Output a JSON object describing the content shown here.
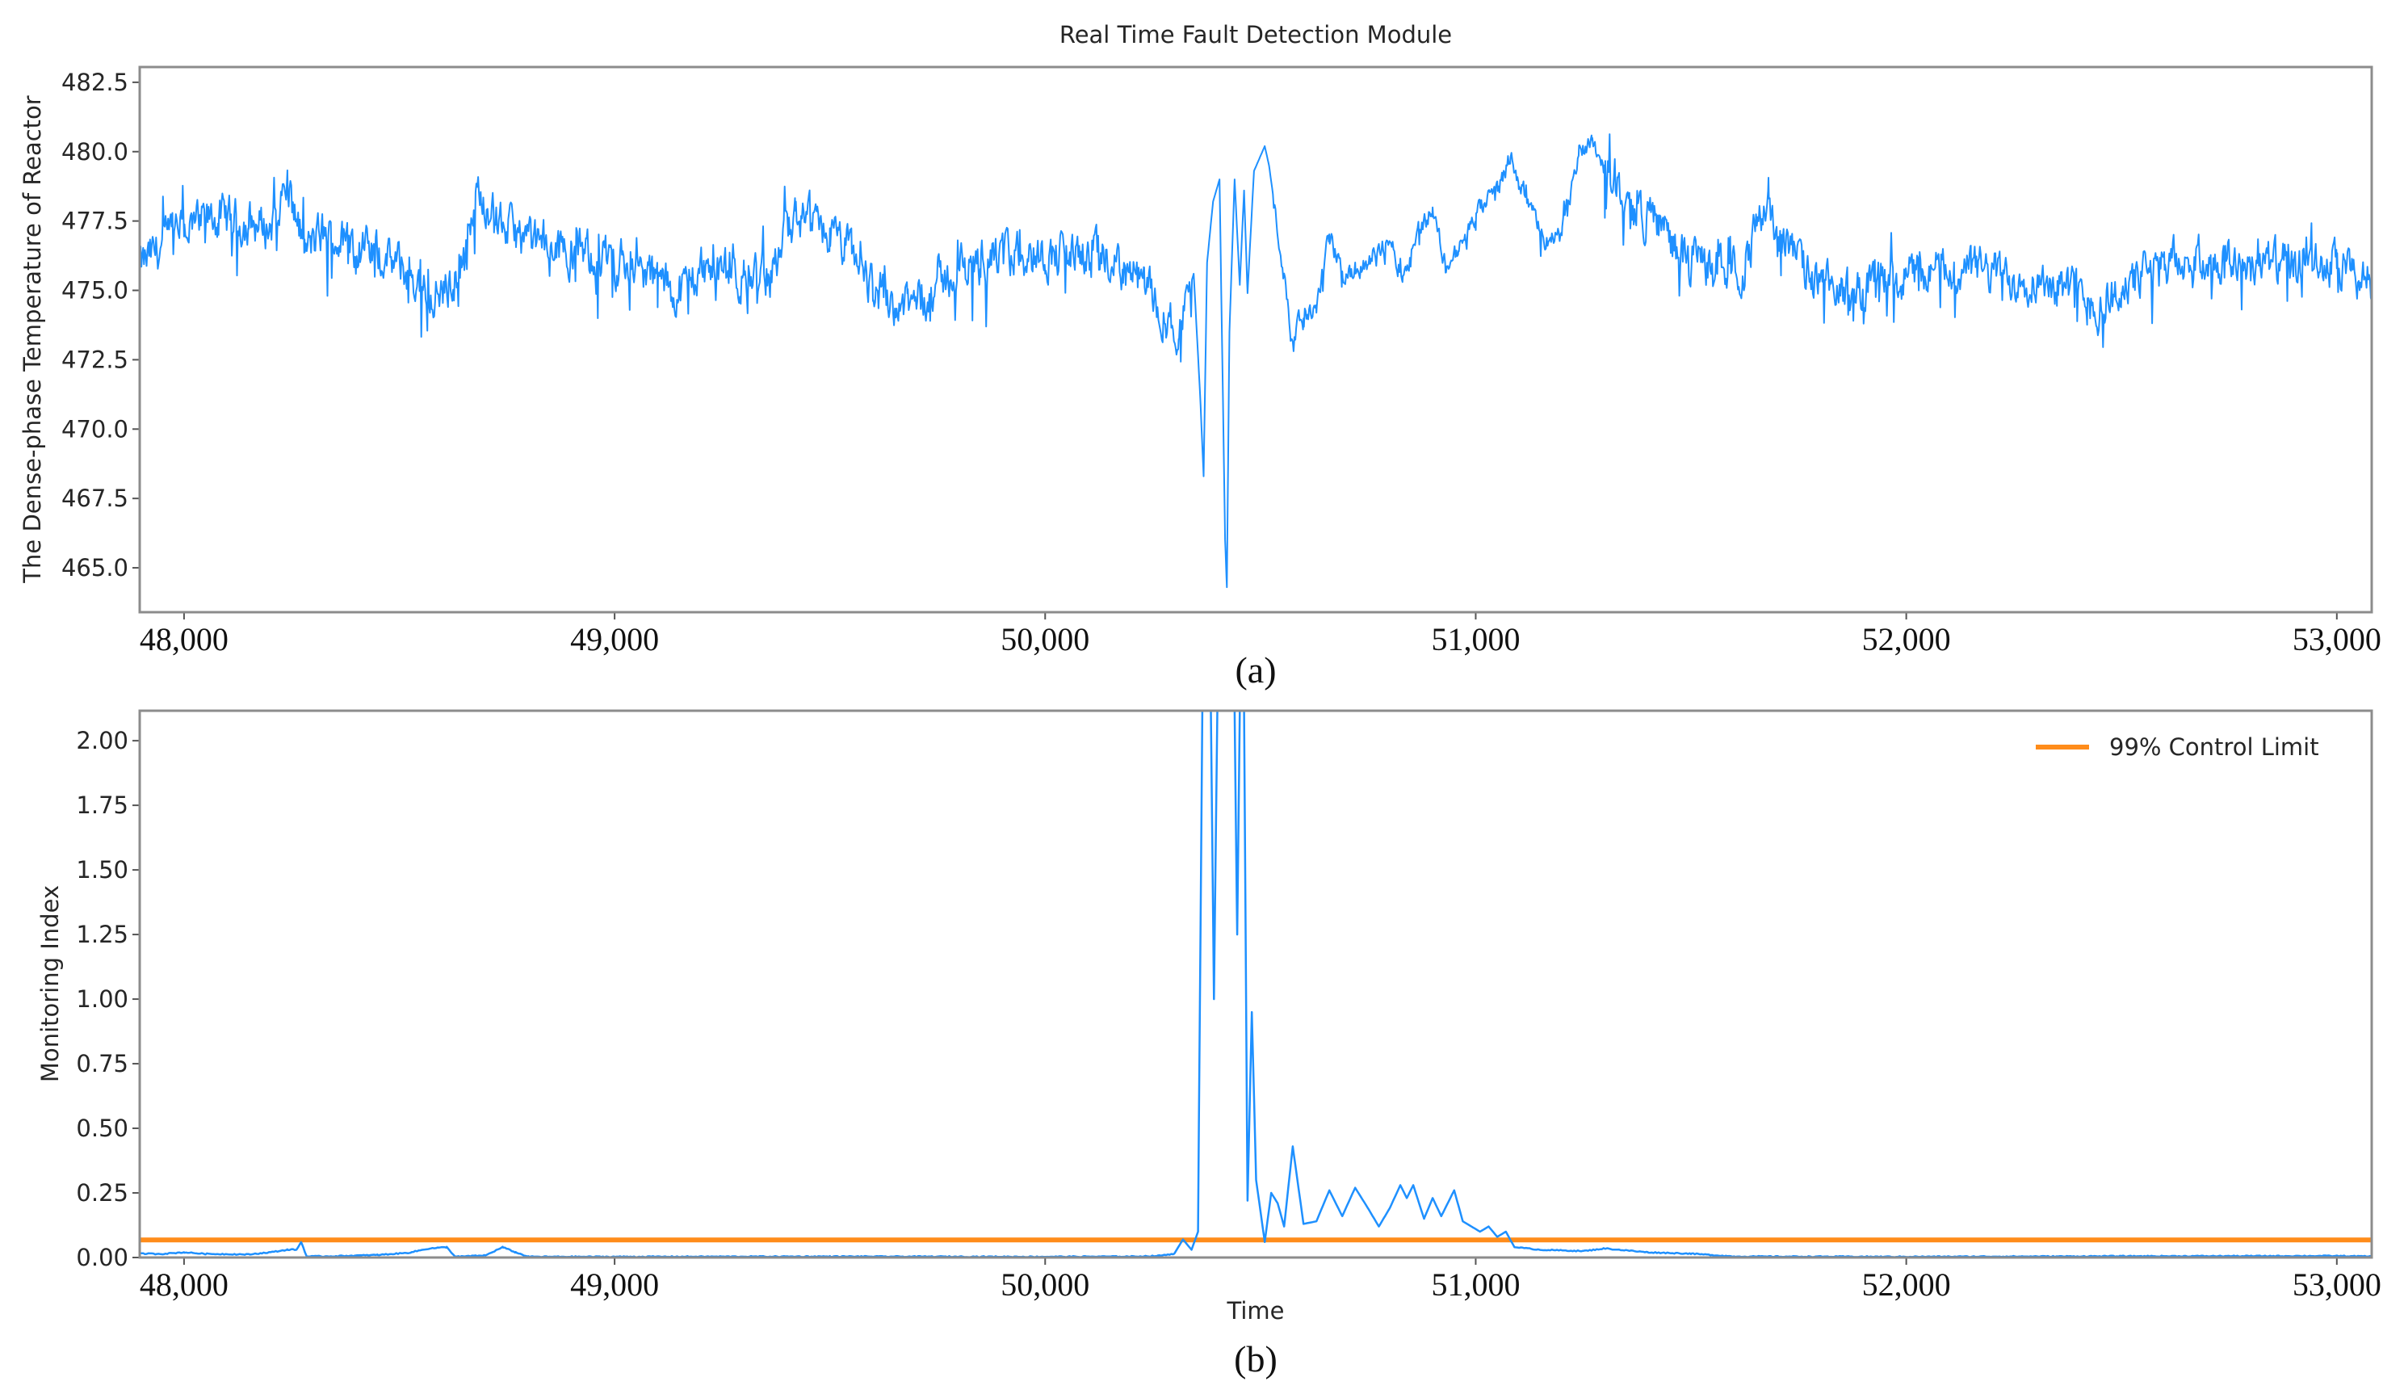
{
  "figure": {
    "title": "Real Time Fault Detection Module",
    "panel_a_label": "(a)",
    "panel_b_label": "(b)"
  },
  "colors": {
    "series": "#1e90ff",
    "control_limit": "#ff8c1a",
    "frame": "#8c8c8c",
    "text": "#262626"
  },
  "chart_data": [
    {
      "id": "temperature",
      "type": "line",
      "title": "Real Time Fault Detection Module",
      "xlabel": "",
      "ylabel": "The Dense-phase Temperature of Reactor",
      "panel_label": "(a)",
      "xlim": [
        47897,
        53081
      ],
      "ylim": [
        463.4,
        483.05
      ],
      "grid": false,
      "xticks": [
        48000,
        49000,
        50000,
        51000,
        52000,
        53000
      ],
      "xtick_labels": [
        "48,000",
        "49,000",
        "50,000",
        "51,000",
        "52,000",
        "53,000"
      ],
      "yticks": [
        465.0,
        467.5,
        470.0,
        472.5,
        475.0,
        477.5,
        480.0,
        482.5
      ],
      "ytick_labels": [
        "465.0",
        "467.5",
        "470.0",
        "472.5",
        "475.0",
        "477.5",
        "480.0",
        "482.5"
      ],
      "series": [
        {
          "name": "Dense-phase temperature",
          "color": "#1e90ff",
          "noise_amplitude": 0.9,
          "trend_points": [
            [
              47897,
              475.8
            ],
            [
              47950,
              476.6
            ],
            [
              48000,
              477.3
            ],
            [
              48080,
              477.6
            ],
            [
              48150,
              477.4
            ],
            [
              48200,
              477.3
            ],
            [
              48240,
              478.8
            ],
            [
              48280,
              476.4
            ],
            [
              48320,
              477.0
            ],
            [
              48400,
              476.6
            ],
            [
              48500,
              475.9
            ],
            [
              48560,
              475.0
            ],
            [
              48600,
              474.8
            ],
            [
              48650,
              476.0
            ],
            [
              48690,
              478.9
            ],
            [
              48720,
              477.6
            ],
            [
              48800,
              476.7
            ],
            [
              48900,
              476.4
            ],
            [
              49000,
              476.1
            ],
            [
              49100,
              475.4
            ],
            [
              49150,
              474.9
            ],
            [
              49200,
              475.8
            ],
            [
              49300,
              475.4
            ],
            [
              49360,
              475.6
            ],
            [
              49420,
              477.6
            ],
            [
              49500,
              477.0
            ],
            [
              49550,
              476.4
            ],
            [
              49600,
              475.1
            ],
            [
              49680,
              474.4
            ],
            [
              49750,
              475.2
            ],
            [
              49850,
              476.2
            ],
            [
              50000,
              476.3
            ],
            [
              50100,
              476.3
            ],
            [
              50180,
              475.8
            ],
            [
              50230,
              475.2
            ],
            [
              50280,
              474.2
            ],
            [
              50310,
              473.4
            ],
            [
              50330,
              474.8
            ],
            [
              50345,
              475.6
            ],
            [
              50360,
              471.2
            ],
            [
              50368,
              468.3
            ],
            [
              50376,
              476.0
            ],
            [
              50390,
              478.2
            ],
            [
              50405,
              479.0
            ],
            [
              50418,
              466.0
            ],
            [
              50422,
              464.3
            ],
            [
              50428,
              473.5
            ],
            [
              50440,
              479.0
            ],
            [
              50452,
              475.2
            ],
            [
              50462,
              478.6
            ],
            [
              50470,
              474.9
            ],
            [
              50485,
              479.3
            ],
            [
              50510,
              480.2
            ],
            [
              50520,
              479.5
            ],
            [
              50555,
              475.5
            ],
            [
              50570,
              473.6
            ],
            [
              50600,
              473.9
            ],
            [
              50630,
              474.4
            ],
            [
              50660,
              477.0
            ],
            [
              50690,
              475.6
            ],
            [
              50720,
              475.6
            ],
            [
              50760,
              476.1
            ],
            [
              50800,
              476.9
            ],
            [
              50830,
              475.5
            ],
            [
              50870,
              477.3
            ],
            [
              50900,
              477.9
            ],
            [
              50930,
              475.9
            ],
            [
              50960,
              476.4
            ],
            [
              51000,
              477.7
            ],
            [
              51050,
              478.6
            ],
            [
              51080,
              479.8
            ],
            [
              51100,
              479.0
            ],
            [
              51160,
              476.7
            ],
            [
              51200,
              477.0
            ],
            [
              51240,
              480.0
            ],
            [
              51270,
              480.5
            ],
            [
              51300,
              479.4
            ],
            [
              51360,
              478.0
            ],
            [
              51420,
              477.6
            ],
            [
              51480,
              476.2
            ],
            [
              51550,
              475.9
            ],
            [
              51620,
              475.8
            ],
            [
              51680,
              478.3
            ],
            [
              51710,
              476.9
            ],
            [
              51780,
              475.4
            ],
            [
              51850,
              474.9
            ],
            [
              51950,
              475.4
            ],
            [
              52050,
              475.7
            ],
            [
              52150,
              475.8
            ],
            [
              52250,
              475.5
            ],
            [
              52350,
              475.3
            ],
            [
              52420,
              474.7
            ],
            [
              52450,
              474.3
            ],
            [
              52500,
              475.1
            ],
            [
              52600,
              476.0
            ],
            [
              52700,
              476.1
            ],
            [
              52800,
              476.0
            ],
            [
              52900,
              475.9
            ],
            [
              53000,
              475.8
            ],
            [
              53081,
              475.3
            ]
          ]
        }
      ]
    },
    {
      "id": "monitoring_index",
      "type": "line",
      "title": "",
      "xlabel": "Time",
      "ylabel": "Monitoring Index",
      "panel_label": "(b)",
      "xlim": [
        47897,
        53081
      ],
      "ylim": [
        0.0,
        2.116
      ],
      "grid": false,
      "xticks": [
        48000,
        49000,
        50000,
        51000,
        52000,
        53000
      ],
      "xtick_labels": [
        "48,000",
        "49,000",
        "50,000",
        "51,000",
        "52,000",
        "53,000"
      ],
      "yticks": [
        0.0,
        0.25,
        0.5,
        0.75,
        1.0,
        1.25,
        1.5,
        1.75,
        2.0
      ],
      "ytick_labels": [
        "0.00",
        "0.25",
        "0.50",
        "0.75",
        "1.00",
        "1.25",
        "1.50",
        "1.75",
        "2.00"
      ],
      "legend": {
        "position": "upper right",
        "entries": [
          "99% Control Limit"
        ]
      },
      "series": [
        {
          "name": "Monitoring Index",
          "color": "#1e90ff",
          "noise_amplitude": 0.004,
          "points": [
            [
              47897,
              0.015
            ],
            [
              47950,
              0.014
            ],
            [
              48000,
              0.02
            ],
            [
              48050,
              0.014
            ],
            [
              48150,
              0.012
            ],
            [
              48200,
              0.02
            ],
            [
              48240,
              0.03
            ],
            [
              48262,
              0.031
            ],
            [
              48272,
              0.06
            ],
            [
              48285,
              0.004
            ],
            [
              48350,
              0.005
            ],
            [
              48450,
              0.01
            ],
            [
              48520,
              0.018
            ],
            [
              48570,
              0.035
            ],
            [
              48610,
              0.04
            ],
            [
              48630,
              0.003
            ],
            [
              48700,
              0.008
            ],
            [
              48740,
              0.04
            ],
            [
              48770,
              0.02
            ],
            [
              48800,
              0.003
            ],
            [
              49000,
              0.003
            ],
            [
              49500,
              0.004
            ],
            [
              50000,
              0.003
            ],
            [
              50200,
              0.004
            ],
            [
              50260,
              0.006
            ],
            [
              50300,
              0.015
            ],
            [
              50320,
              0.07
            ],
            [
              50340,
              0.03
            ],
            [
              50355,
              0.1
            ],
            [
              50365,
              2.116
            ],
            [
              50385,
              2.116
            ],
            [
              50392,
              1.0
            ],
            [
              50400,
              2.116
            ],
            [
              50440,
              2.116
            ],
            [
              50446,
              1.25
            ],
            [
              50452,
              2.116
            ],
            [
              50462,
              2.116
            ],
            [
              50470,
              0.22
            ],
            [
              50480,
              0.95
            ],
            [
              50490,
              0.3
            ],
            [
              50510,
              0.06
            ],
            [
              50525,
              0.25
            ],
            [
              50540,
              0.21
            ],
            [
              50555,
              0.12
            ],
            [
              50575,
              0.43
            ],
            [
              50600,
              0.13
            ],
            [
              50630,
              0.14
            ],
            [
              50660,
              0.26
            ],
            [
              50690,
              0.16
            ],
            [
              50720,
              0.27
            ],
            [
              50750,
              0.19
            ],
            [
              50775,
              0.12
            ],
            [
              50800,
              0.19
            ],
            [
              50825,
              0.28
            ],
            [
              50840,
              0.23
            ],
            [
              50855,
              0.28
            ],
            [
              50880,
              0.15
            ],
            [
              50900,
              0.23
            ],
            [
              50920,
              0.16
            ],
            [
              50950,
              0.26
            ],
            [
              50970,
              0.14
            ],
            [
              50990,
              0.12
            ],
            [
              51010,
              0.1
            ],
            [
              51030,
              0.12
            ],
            [
              51050,
              0.08
            ],
            [
              51070,
              0.1
            ],
            [
              51090,
              0.04
            ],
            [
              51150,
              0.03
            ],
            [
              51250,
              0.025
            ],
            [
              51300,
              0.035
            ],
            [
              51400,
              0.02
            ],
            [
              51500,
              0.015
            ],
            [
              51600,
              0.004
            ],
            [
              52000,
              0.003
            ],
            [
              52500,
              0.005
            ],
            [
              53000,
              0.006
            ],
            [
              53081,
              0.004
            ]
          ]
        },
        {
          "name": "99% Control Limit",
          "color": "#ff8c1a",
          "constant": 0.068
        }
      ]
    }
  ]
}
